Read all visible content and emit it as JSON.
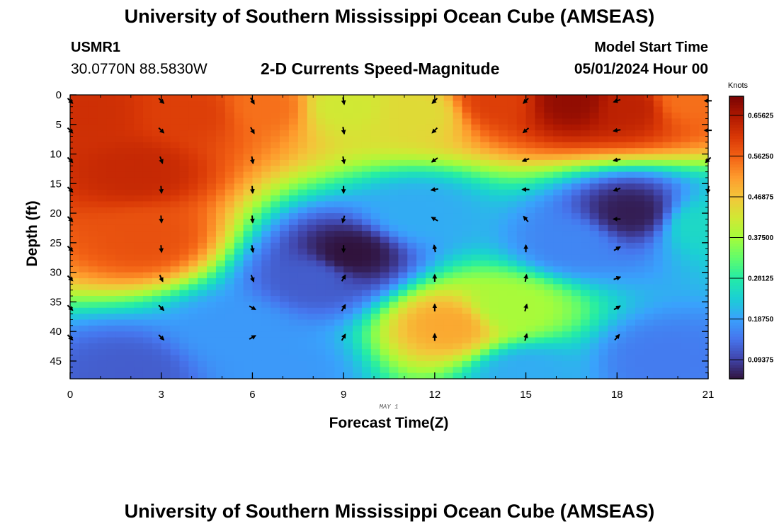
{
  "header": {
    "title": "University of Southern Mississippi Ocean Cube (AMSEAS)",
    "station_id": "USMR1",
    "location": "30.0770N  88.5830W",
    "subtitle": "2-D Currents Speed-Magnitude",
    "model_start_label": "Model Start Time",
    "model_start_value": "05/01/2024 Hour 00"
  },
  "footer": {
    "title": "University of Southern Mississippi Ocean Cube (AMSEAS)"
  },
  "chart_data": {
    "type": "heatmap",
    "title": "2-D Currents Speed-Magnitude",
    "xlabel": "Forecast Time(Z)",
    "ylabel": "Depth (ft)",
    "date_label": "MAY 1",
    "xlim": [
      0,
      21
    ],
    "ylim": [
      48,
      0
    ],
    "x_ticks": [
      0,
      3,
      6,
      9,
      12,
      15,
      18,
      21
    ],
    "y_ticks": [
      0,
      5,
      10,
      15,
      20,
      25,
      30,
      35,
      40,
      45
    ],
    "colorbar": {
      "label": "Knots",
      "min": 0.05,
      "max": 0.7,
      "ticks": [
        "0.65625",
        "0.56250",
        "0.46875",
        "0.37500",
        "0.28125",
        "0.18750",
        "0.09375"
      ],
      "tick_values": [
        0.65625,
        0.5625,
        0.46875,
        0.375,
        0.28125,
        0.1875,
        0.09375
      ],
      "colors": [
        "#30123b",
        "#4145ab",
        "#4675ed",
        "#39a2fc",
        "#1bcfd4",
        "#24eca6",
        "#61fc6c",
        "#a4fc3b",
        "#d1e834",
        "#f3c63a",
        "#fe9b2d",
        "#f36315",
        "#d93806",
        "#b11901",
        "#7a0403"
      ]
    },
    "speed_centers": [
      {
        "t": 2.2,
        "depth": 13,
        "speed": 0.63
      },
      {
        "t": 0.5,
        "depth": 3,
        "speed": 0.62
      },
      {
        "t": 4.0,
        "depth": 3,
        "speed": 0.6
      },
      {
        "t": 2.5,
        "depth": 24,
        "speed": 0.58
      },
      {
        "t": 6.5,
        "depth": 2,
        "speed": 0.55
      },
      {
        "t": 9.0,
        "depth": 2,
        "speed": 0.42
      },
      {
        "t": 11.5,
        "depth": 3,
        "speed": 0.44
      },
      {
        "t": 14.0,
        "depth": 1,
        "speed": 0.6
      },
      {
        "t": 16.5,
        "depth": 1,
        "speed": 0.68
      },
      {
        "t": 18.5,
        "depth": 2,
        "speed": 0.64
      },
      {
        "t": 20.2,
        "depth": 1,
        "speed": 0.55
      },
      {
        "t": 9.2,
        "depth": 27,
        "speed": 0.05
      },
      {
        "t": 8.0,
        "depth": 31,
        "speed": 0.12
      },
      {
        "t": 11.5,
        "depth": 20,
        "speed": 0.2
      },
      {
        "t": 18.5,
        "depth": 20,
        "speed": 0.06
      },
      {
        "t": 16.5,
        "depth": 25,
        "speed": 0.16
      },
      {
        "t": 12.5,
        "depth": 39,
        "speed": 0.5
      },
      {
        "t": 14.5,
        "depth": 36,
        "speed": 0.38
      },
      {
        "t": 5.5,
        "depth": 40,
        "speed": 0.18
      },
      {
        "t": 2.0,
        "depth": 47,
        "speed": 0.12
      },
      {
        "t": 7.0,
        "depth": 47,
        "speed": 0.18
      },
      {
        "t": 15.0,
        "depth": 47,
        "speed": 0.2
      },
      {
        "t": 19.5,
        "depth": 45,
        "speed": 0.15
      },
      {
        "t": 20.8,
        "depth": 22,
        "speed": 0.25
      }
    ],
    "vector_rows": [
      1,
      6,
      11,
      16,
      21,
      26,
      31,
      36,
      41
    ],
    "vectors": [
      {
        "t": 0,
        "dirs": [
          135,
          135,
          135,
          135,
          135,
          135,
          135,
          135,
          135
        ]
      },
      {
        "t": 3,
        "dirs": [
          135,
          135,
          160,
          175,
          175,
          175,
          155,
          135,
          135
        ]
      },
      {
        "t": 6,
        "dirs": [
          150,
          150,
          170,
          175,
          175,
          170,
          160,
          120,
          60
        ]
      },
      {
        "t": 9,
        "dirs": [
          170,
          170,
          170,
          180,
          195,
          180,
          30,
          30,
          30
        ]
      },
      {
        "t": 12,
        "dirs": [
          225,
          225,
          235,
          260,
          300,
          350,
          0,
          0,
          0
        ]
      },
      {
        "t": 15,
        "dirs": [
          225,
          230,
          250,
          270,
          320,
          0,
          10,
          15,
          15
        ]
      },
      {
        "t": 18,
        "dirs": [
          250,
          260,
          260,
          250,
          270,
          60,
          70,
          60,
          40
        ]
      },
      {
        "t": 21,
        "dirs": [
          270,
          270,
          225,
          190,
          null,
          null,
          null,
          null,
          null
        ]
      }
    ]
  }
}
